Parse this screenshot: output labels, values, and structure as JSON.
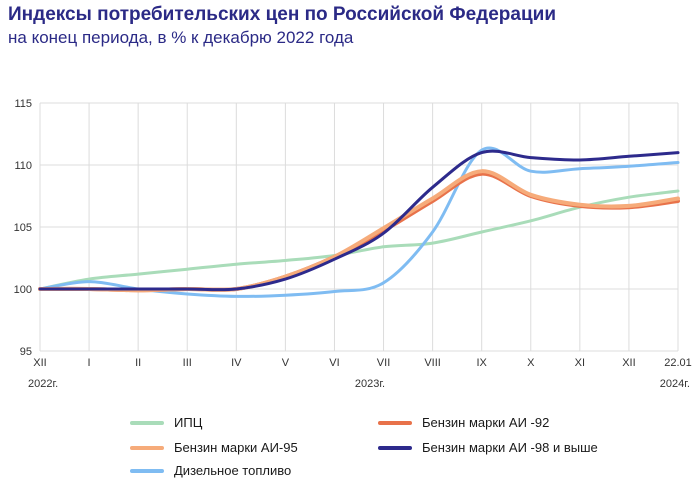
{
  "title": "Индексы потребительских цен по Российской Федерации",
  "subtitle": "на конец периода, в % к декабрю 2022 года",
  "chart_data": {
    "type": "line",
    "categories": [
      "XII",
      "I",
      "II",
      "III",
      "IV",
      "V",
      "VI",
      "VII",
      "VIII",
      "IX",
      "X",
      "XI",
      "XII",
      "22.01"
    ],
    "year_labels": [
      "2022г.",
      "2023г.",
      "2024г."
    ],
    "ylim": [
      95,
      115
    ],
    "yticks": [
      95,
      100,
      105,
      110,
      115
    ],
    "ytick_labels": [
      "95",
      "100",
      "105",
      "110",
      "115"
    ],
    "grid": true,
    "legend_position": "bottom",
    "series": [
      {
        "name": "ИПЦ",
        "color": "#a9dcb9",
        "values": [
          100.0,
          100.8,
          101.2,
          101.6,
          102.0,
          102.3,
          102.7,
          103.4,
          103.7,
          104.6,
          105.5,
          106.6,
          107.4,
          107.9
        ]
      },
      {
        "name": "Бензин марки АИ -92",
        "color": "#e8724a",
        "values": [
          100.0,
          100.0,
          99.9,
          100.0,
          100.0,
          101.0,
          102.6,
          104.7,
          107.1,
          109.3,
          107.5,
          106.7,
          106.6,
          107.1
        ]
      },
      {
        "name": "Бензин марки АИ-95",
        "color": "#f6ab7a",
        "values": [
          100.0,
          100.0,
          99.9,
          100.0,
          100.0,
          101.0,
          102.6,
          104.9,
          107.3,
          109.5,
          107.6,
          106.8,
          106.7,
          107.3
        ]
      },
      {
        "name": "Бензин марки АИ -98  и  выше",
        "color": "#2d2a8c",
        "values": [
          100.0,
          100.0,
          100.0,
          100.0,
          100.0,
          100.8,
          102.4,
          104.5,
          108.2,
          111.0,
          110.6,
          110.4,
          110.7,
          111.0
        ]
      },
      {
        "name": "Дизельное топливо",
        "color": "#7fbcf2",
        "values": [
          100.0,
          100.6,
          100.0,
          99.6,
          99.4,
          99.5,
          99.8,
          100.5,
          104.6,
          111.2,
          109.5,
          109.7,
          109.9,
          110.2
        ]
      }
    ]
  }
}
